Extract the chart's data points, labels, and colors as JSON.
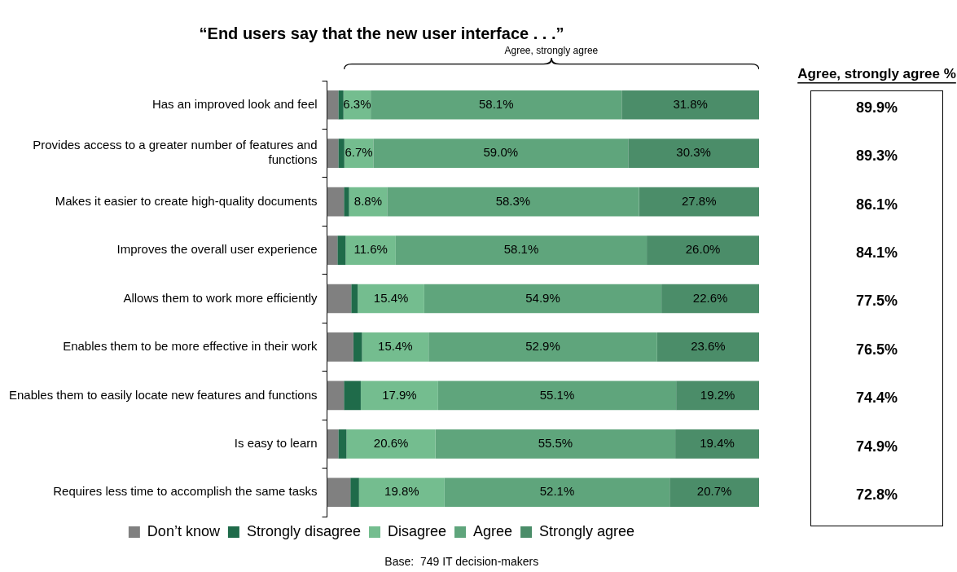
{
  "chart_data": {
    "type": "bar",
    "orientation": "horizontal",
    "stacked": true,
    "title": "“End users say that the new user interface . . .”",
    "categories": [
      "Has an improved look and feel",
      "Provides access to a greater number of features and functions",
      "Makes it easier to create high-quality documents",
      "Improves the overall user experience",
      "Allows them to work more efficiently",
      "Enables them to be more effective in their work",
      "Enables them to easily locate new features and functions",
      "Is easy to learn",
      "Requires less time to accomplish the same tasks"
    ],
    "xlim": [
      0,
      100
    ],
    "tick_labels": "y",
    "grid": false,
    "legend": "bottom",
    "series": [
      {
        "name": "Don’t know",
        "color": "#808080",
        "values": [
          2.6,
          2.6,
          3.9,
          2.4,
          5.6,
          6.1,
          3.9,
          2.6,
          5.4
        ]
      },
      {
        "name": "Strongly disagree",
        "color": "#1f6b4a",
        "values": [
          1.2,
          1.4,
          1.2,
          1.9,
          1.5,
          2.0,
          3.9,
          1.9,
          2.0
        ]
      },
      {
        "name": "Disagree",
        "color": "#74bd8f",
        "values": [
          6.3,
          6.7,
          8.8,
          11.6,
          15.4,
          15.4,
          17.9,
          20.6,
          19.8
        ],
        "value_labels": [
          "6.3%",
          "6.7%",
          "8.8%",
          "11.6%",
          "15.4%",
          "15.4%",
          "17.9%",
          "20.6%",
          "19.8%"
        ]
      },
      {
        "name": "Agree",
        "color": "#5fa57c",
        "values": [
          58.1,
          59.0,
          58.3,
          58.1,
          54.9,
          52.9,
          55.1,
          55.5,
          52.1
        ],
        "value_labels": [
          "58.1%",
          "59.0%",
          "58.3%",
          "58.1%",
          "54.9%",
          "52.9%",
          "55.1%",
          "55.5%",
          "52.1%"
        ]
      },
      {
        "name": "Strongly agree",
        "color": "#4b8d69",
        "values": [
          31.8,
          30.3,
          27.8,
          26.0,
          22.6,
          23.6,
          19.2,
          19.4,
          20.7
        ],
        "value_labels": [
          "31.8%",
          "30.3%",
          "27.8%",
          "26.0%",
          "22.6%",
          "23.6%",
          "19.2%",
          "19.4%",
          "20.7%"
        ]
      }
    ],
    "annotations": [
      "Agree, strongly agree",
      "Agree, strongly agree %",
      "Base:  749 IT decision-makers",
      "89.9%",
      "89.3%",
      "86.1%",
      "84.1%",
      "77.5%",
      "76.5%",
      "74.4%",
      "74.9%",
      "72.8%"
    ]
  }
}
